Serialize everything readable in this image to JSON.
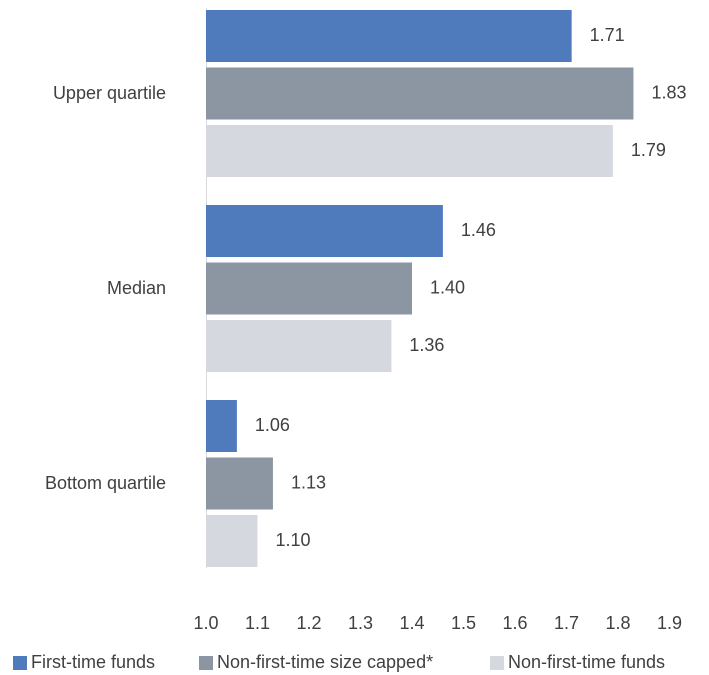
{
  "chart_data": {
    "type": "bar",
    "orientation": "horizontal",
    "categories": [
      "Upper quartile",
      "Median",
      "Bottom quartile"
    ],
    "series": [
      {
        "name": "First-time funds",
        "values": [
          1.71,
          1.46,
          1.06
        ],
        "color": "#4f7bbd"
      },
      {
        "name": "Non-first-time size capped*",
        "values": [
          1.83,
          1.4,
          1.13
        ],
        "color": "#8c96a2"
      },
      {
        "name": "Non-first-time funds",
        "values": [
          1.79,
          1.36,
          1.1
        ],
        "color": "#d5d8de"
      }
    ],
    "value_labels": [
      [
        "1.71",
        "1.46",
        "1.06"
      ],
      [
        "1.83",
        "1.40",
        "1.13"
      ],
      [
        "1.79",
        "1.36",
        "1.10"
      ]
    ],
    "xlim": [
      1.0,
      1.9
    ],
    "xticks": [
      "1.0",
      "1.1",
      "1.2",
      "1.3",
      "1.4",
      "1.5",
      "1.6",
      "1.7",
      "1.8",
      "1.9"
    ],
    "grid": false,
    "legend_position": "bottom"
  }
}
